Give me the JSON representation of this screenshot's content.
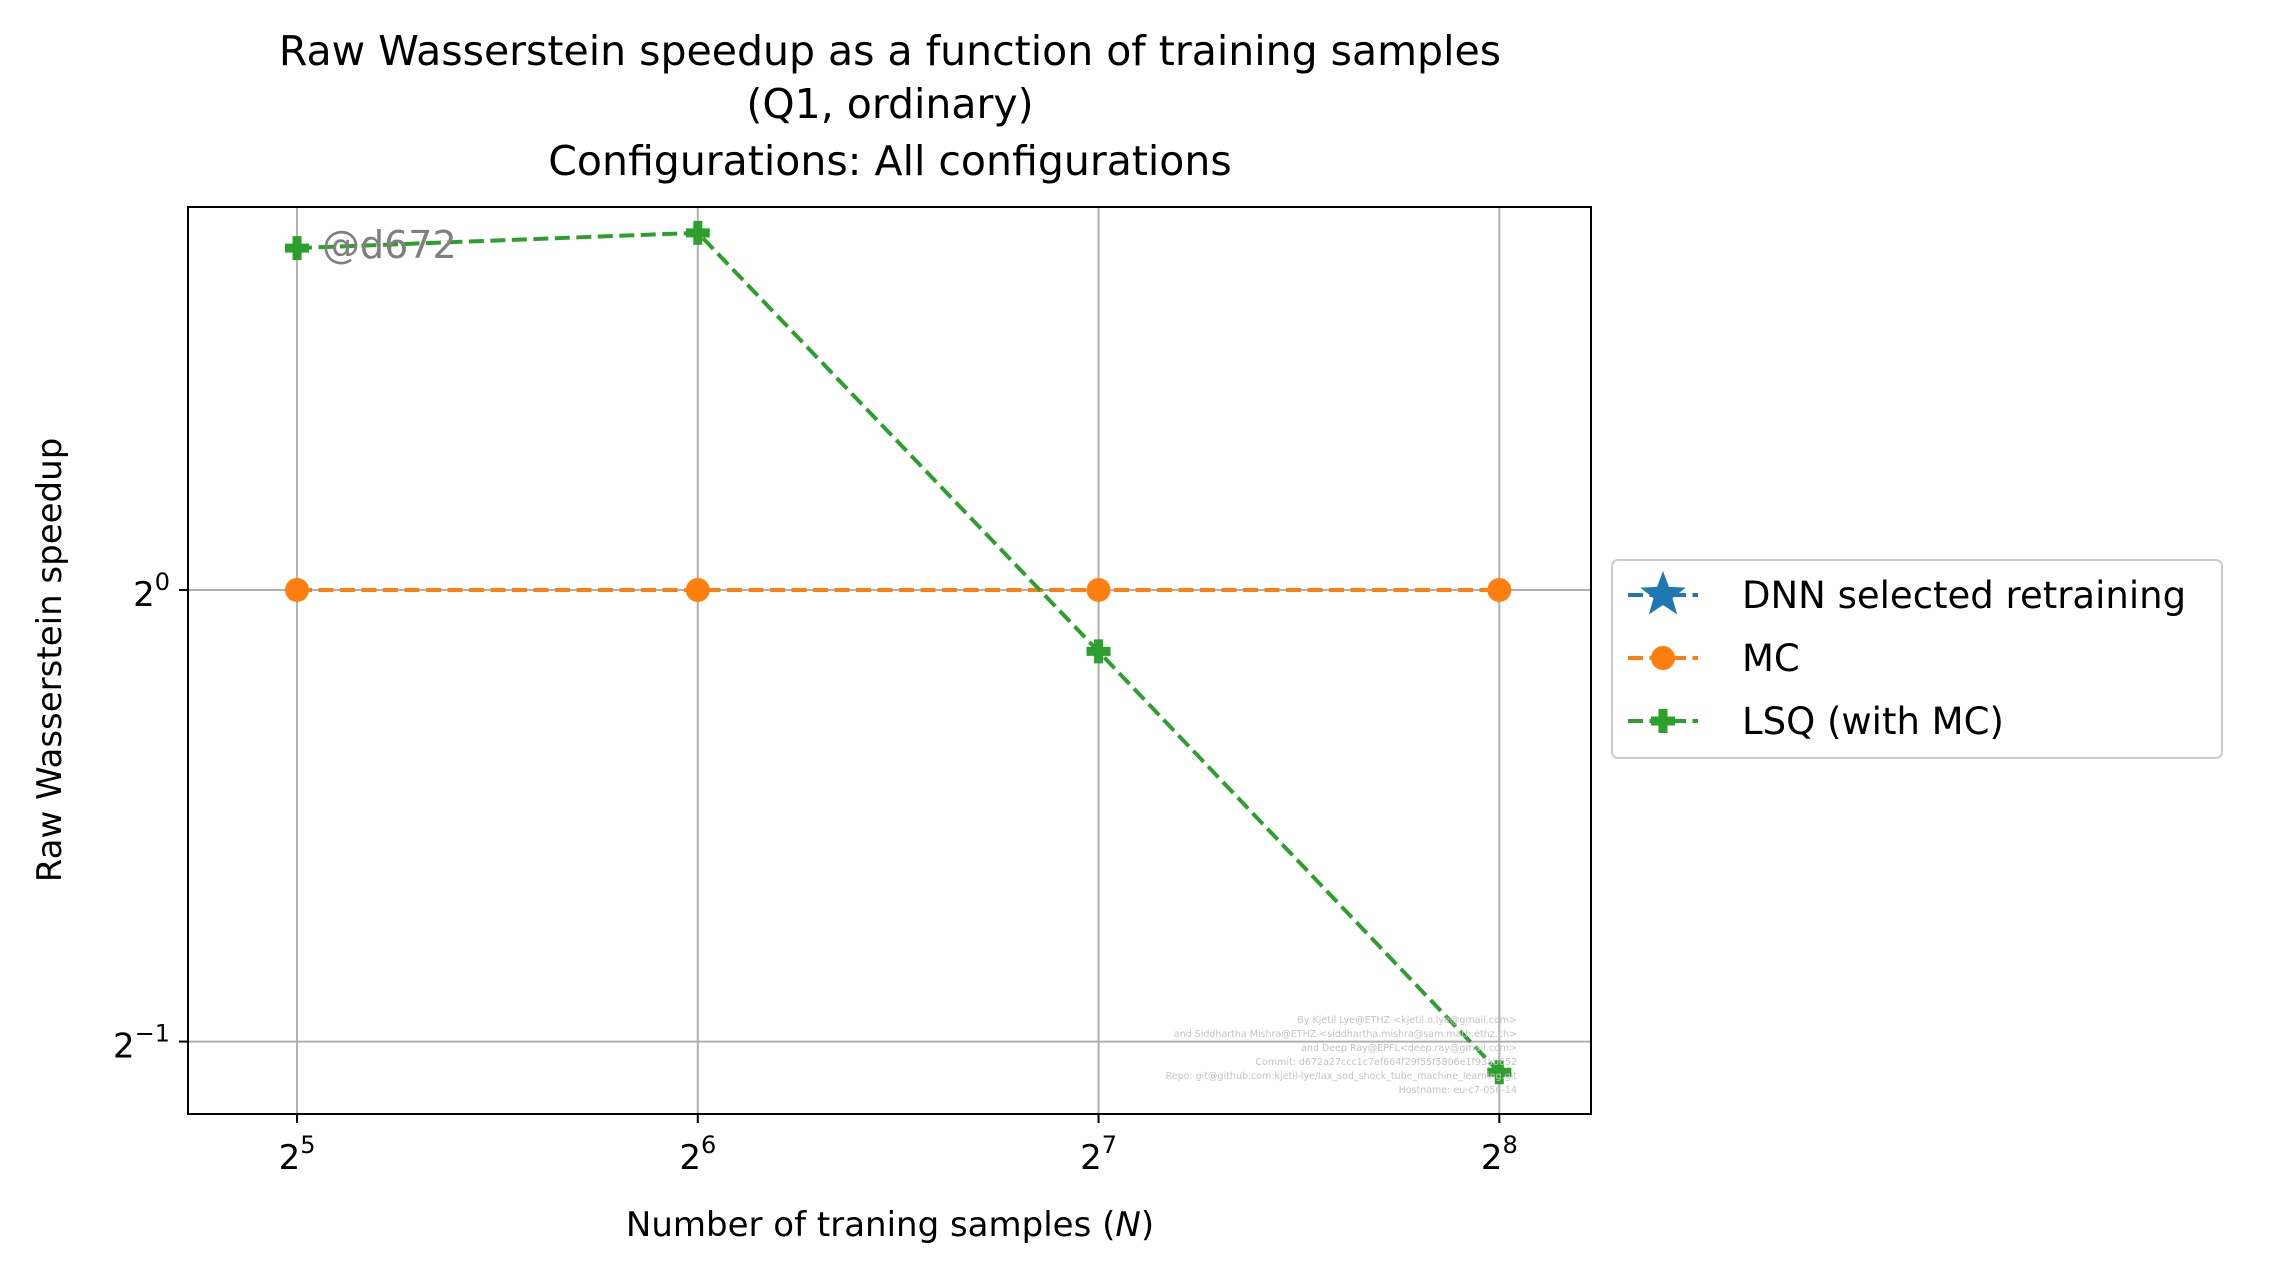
{
  "chart_data": {
    "type": "line",
    "title_lines": [
      "Raw Wasserstein speedup as a function of training samples",
      "(Q1, ordinary)",
      "Configurations: All configurations"
    ],
    "xlabel_prefix": "Number of traning samples (",
    "xlabel_var": "N",
    "xlabel_suffix": ")",
    "ylabel": "Raw Wasserstein speedup",
    "xscale": "log2",
    "yscale": "log2",
    "xlim": [
      26.5,
      300
    ],
    "ylim": [
      0.4474,
      1.8
    ],
    "xticks": [
      {
        "value": 32,
        "base": "2",
        "exp": "5"
      },
      {
        "value": 64,
        "base": "2",
        "exp": "6"
      },
      {
        "value": 128,
        "base": "2",
        "exp": "7"
      },
      {
        "value": 256,
        "base": "2",
        "exp": "8"
      }
    ],
    "yticks": [
      {
        "value": 1,
        "base": "2",
        "exp": "0"
      },
      {
        "value": 0.5,
        "base": "2",
        "exp": "−1"
      }
    ],
    "grid": true,
    "legend_position": "outside right",
    "series": [
      {
        "name": "DNN selected retraining",
        "color": "#1f77b4",
        "marker": "star",
        "line": "dashed",
        "x": [],
        "y": []
      },
      {
        "name": "MC",
        "color": "#ff7f0e",
        "marker": "circle",
        "line": "dashed",
        "x": [
          32,
          64,
          128,
          256
        ],
        "y": [
          1,
          1,
          1,
          1
        ]
      },
      {
        "name": "LSQ (with MC)",
        "color": "#2ca02c",
        "marker": "plus",
        "line": "dashed",
        "x": [
          32,
          64,
          128,
          256
        ],
        "y": [
          1.69,
          1.73,
          0.91,
          0.477
        ]
      }
    ],
    "watermark": "@d672",
    "credits": [
      "By Kjetil Lye@ETHZ <kjetil.o.lye@gmail.com>",
      "and Siddhartha Mishra@ETHZ <siddhartha.mishra@sam.math.ethz.ch>",
      "and Deep Ray@EPFL<deep.ray@gmail.com>",
      "Commit: d672a27ccc1c7ef664f29f55f5806e1f93ab652",
      "Repo: git@github.com:kjetil-lye/lax_sod_shock_tube_machine_learning.git",
      "Hostname: eu-c7-056-14"
    ]
  }
}
